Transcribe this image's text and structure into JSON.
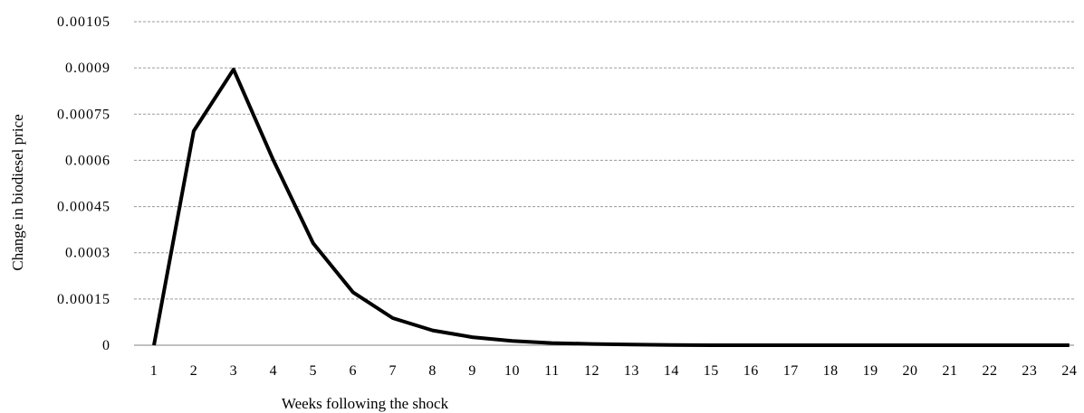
{
  "chart_data": {
    "type": "line",
    "xlabel": "Weeks following the shock",
    "ylabel": "Change in biodiesel price",
    "ylim": [
      0,
      0.00105
    ],
    "yticks": [
      "0",
      "0.00015",
      "0.0003",
      "0.00045",
      "0.0006",
      "0.00075",
      "0.0009",
      "0.00105"
    ],
    "ytick_values": [
      0,
      0.00015,
      0.0003,
      0.00045,
      0.0006,
      0.00075,
      0.0009,
      0.00105
    ],
    "x": [
      1,
      2,
      3,
      4,
      5,
      6,
      7,
      8,
      9,
      10,
      11,
      12,
      13,
      14,
      15,
      16,
      17,
      18,
      19,
      20,
      21,
      22,
      23,
      24
    ],
    "series": [
      {
        "values": [
          0,
          0.000695,
          0.000895,
          0.0006,
          0.000331,
          0.000172,
          8.8e-05,
          4.8e-05,
          2.6e-05,
          1.4e-05,
          7e-06,
          4e-06,
          2e-06,
          1e-06,
          0,
          0,
          0,
          0,
          0,
          0,
          0,
          0,
          0,
          0
        ]
      }
    ],
    "grid": true,
    "legend": "none",
    "line_color": "#000000"
  }
}
